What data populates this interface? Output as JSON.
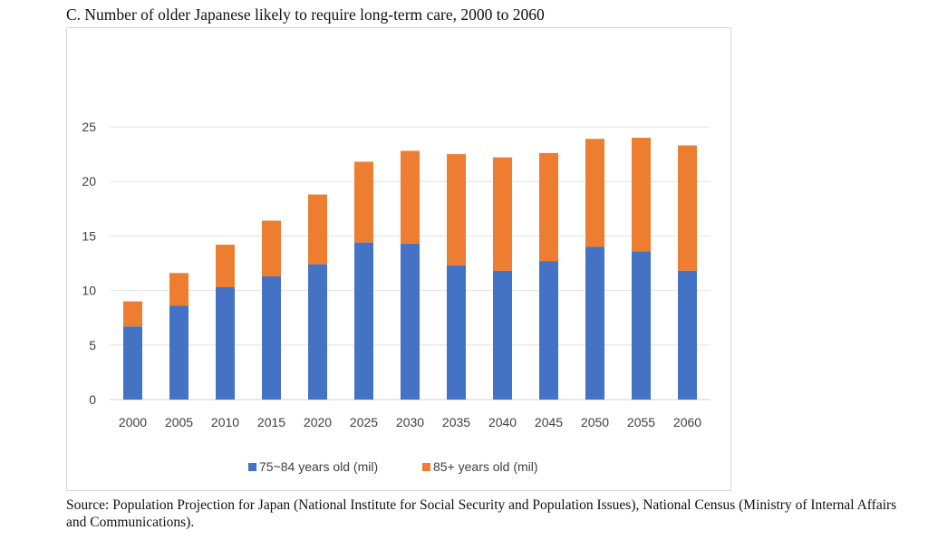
{
  "title": "C. Number of older Japanese likely to require long-term care, 2000 to 2060",
  "source": "Source: Population Projection for Japan (National Institute for Social Security and Population Issues), National Census (Ministry of Internal Affairs and Communications).",
  "chart_data": {
    "type": "bar",
    "stacked": true,
    "categories": [
      "2000",
      "2005",
      "2010",
      "2015",
      "2020",
      "2025",
      "2030",
      "2035",
      "2040",
      "2045",
      "2050",
      "2055",
      "2060"
    ],
    "series": [
      {
        "name": "75~84 years old (mil)",
        "color": "#4472c4",
        "values": [
          6.7,
          8.6,
          10.3,
          11.3,
          12.4,
          14.4,
          14.3,
          12.3,
          11.8,
          12.7,
          14.0,
          13.6,
          11.8
        ]
      },
      {
        "name": "85+ years old (mil)",
        "color": "#ed7d31",
        "values": [
          2.3,
          3.0,
          3.9,
          5.1,
          6.4,
          7.4,
          8.5,
          10.2,
          10.4,
          9.9,
          9.9,
          10.4,
          11.5
        ]
      }
    ],
    "yticks": [
      0,
      5,
      10,
      15,
      20,
      25
    ],
    "ylim": [
      0,
      25
    ],
    "grid": true,
    "legend": "bottom"
  }
}
